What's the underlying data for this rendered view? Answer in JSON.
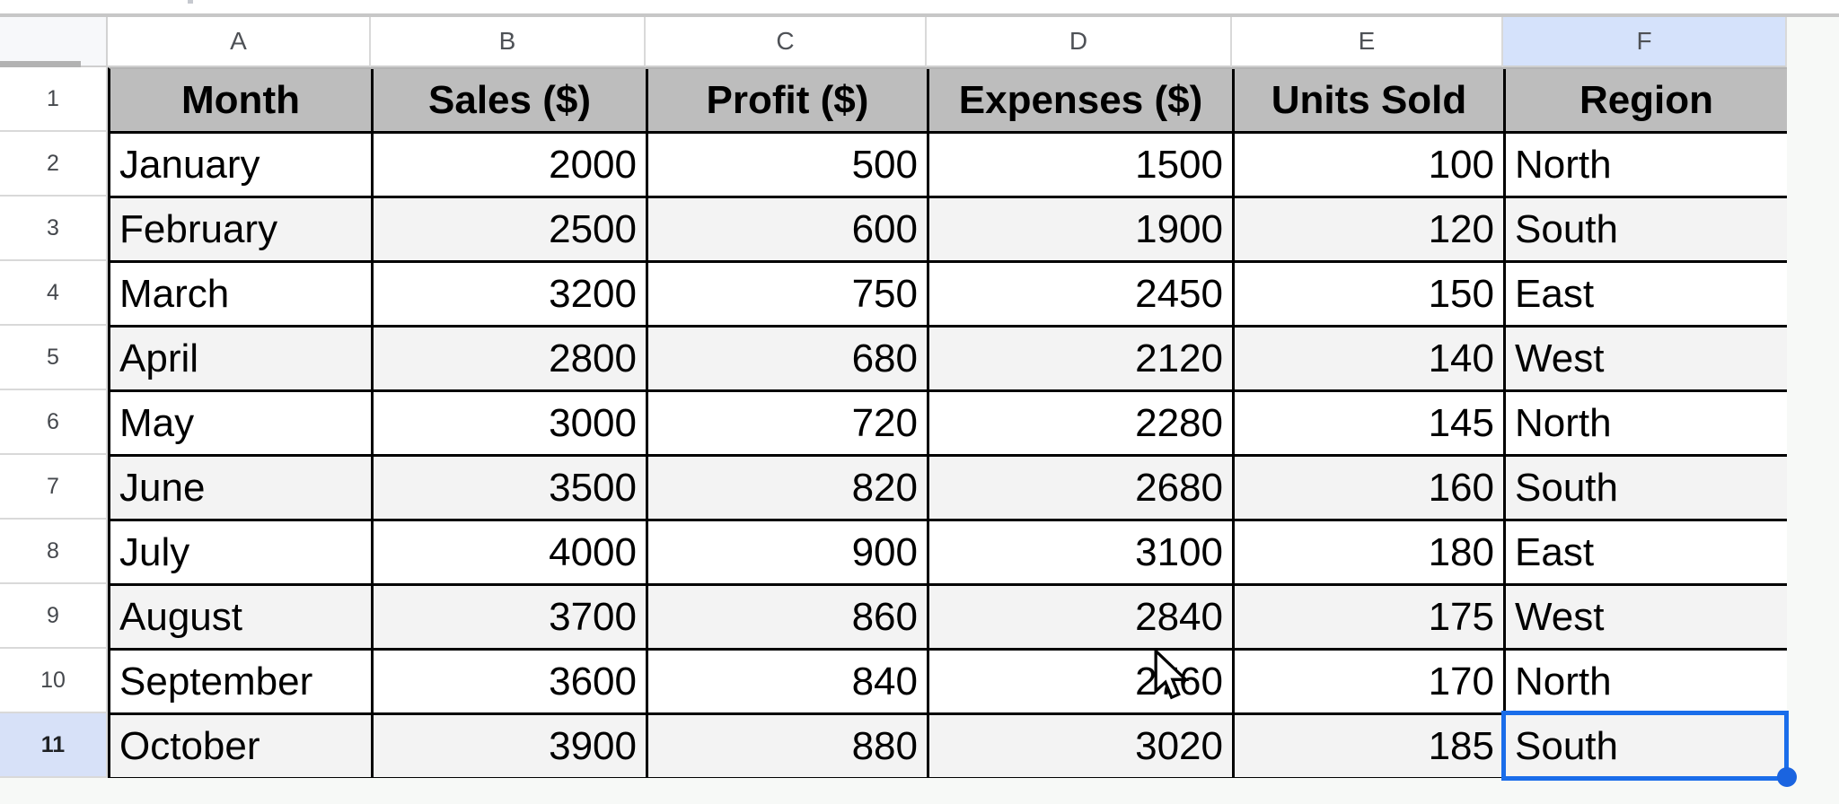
{
  "sheet": {
    "column_letters": [
      "A",
      "B",
      "C",
      "D",
      "E",
      "F"
    ],
    "row_numbers": [
      "1",
      "2",
      "3",
      "4",
      "5",
      "6",
      "7",
      "8",
      "9",
      "10",
      "11"
    ],
    "header_row": [
      "Month",
      "Sales ($)",
      "Profit ($)",
      "Expenses ($)",
      "Units Sold",
      "Region"
    ],
    "rows": [
      [
        "January",
        "2000",
        "500",
        "1500",
        "100",
        "North"
      ],
      [
        "February",
        "2500",
        "600",
        "1900",
        "120",
        "South"
      ],
      [
        "March",
        "3200",
        "750",
        "2450",
        "150",
        "East"
      ],
      [
        "April",
        "2800",
        "680",
        "2120",
        "140",
        "West"
      ],
      [
        "May",
        "3000",
        "720",
        "2280",
        "145",
        "North"
      ],
      [
        "June",
        "3500",
        "820",
        "2680",
        "160",
        "South"
      ],
      [
        "July",
        "4000",
        "900",
        "3100",
        "180",
        "East"
      ],
      [
        "August",
        "3700",
        "860",
        "2840",
        "175",
        "West"
      ],
      [
        "September",
        "3600",
        "840",
        "2760",
        "170",
        "North"
      ],
      [
        "October",
        "3900",
        "880",
        "3020",
        "185",
        "South"
      ]
    ],
    "selection": {
      "cell": "F11",
      "column": "F",
      "row": "11",
      "value": "South"
    }
  },
  "colors": {
    "header_row_fill": "#bdbdbd",
    "band_row_fill": "#f3f3f3",
    "selected_header_fill": "#d5e2fb",
    "selection_border": "#1a6dea",
    "grid_border": "#000000",
    "outside_fill": "#f7f9f7"
  },
  "icons": {
    "cursor": "arrow-pointer",
    "fill_handle": "blue-dot"
  }
}
